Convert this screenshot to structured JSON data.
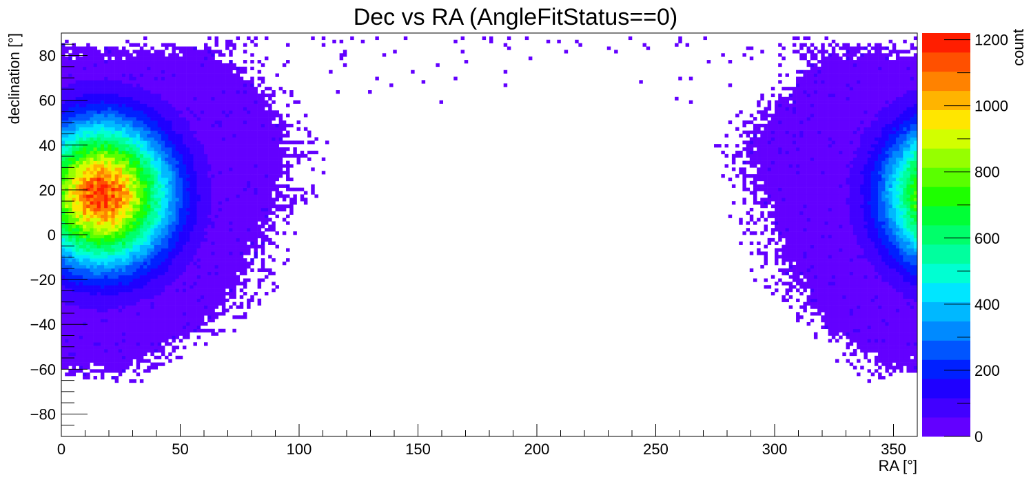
{
  "chart_data": {
    "type": "heatmap",
    "title": "Dec vs RA (AngleFitStatus==0)",
    "xlabel": "RA [°]",
    "ylabel": "declination [°]",
    "zlabel": "count",
    "xlim": [
      0,
      360
    ],
    "ylim": [
      -90,
      90
    ],
    "zlim": [
      0,
      1220
    ],
    "x_ticks": [
      0,
      50,
      100,
      150,
      200,
      250,
      300,
      350
    ],
    "x_tick_labels": [
      "0",
      "50",
      "100",
      "150",
      "200",
      "250",
      "300",
      "350"
    ],
    "y_ticks": [
      -80,
      -60,
      -40,
      -20,
      0,
      20,
      40,
      60,
      80
    ],
    "y_tick_labels": [
      "−80",
      "−60",
      "−40",
      "−20",
      "0",
      "20",
      "40",
      "60",
      "80"
    ],
    "z_ticks": [
      0,
      200,
      400,
      600,
      800,
      1000,
      1200
    ],
    "z_tick_labels": [
      "0",
      "200",
      "400",
      "600",
      "800",
      "1000",
      "1200"
    ],
    "bin_size_deg": [
      1.5,
      1.5
    ],
    "colormap": [
      "#6300ff",
      "#4100ff",
      "#1f00ff",
      "#0020ff",
      "#0055ff",
      "#008aff",
      "#00b8ff",
      "#00e6ff",
      "#00ffd2",
      "#00ff9e",
      "#00ff6a",
      "#00ff36",
      "#1eff00",
      "#5aff00",
      "#96ff00",
      "#d2ff00",
      "#ffe600",
      "#ffb400",
      "#ff8200",
      "#ff5000",
      "#ff1e00"
    ],
    "peak": {
      "ra": 17,
      "dec": 18,
      "count": 1200
    },
    "core_blobs": [
      {
        "ra_center": 17,
        "dec_center": 18,
        "sigma_ra": 19,
        "sigma_dec": 21,
        "peak_count": 1150
      },
      {
        "ra_center": 377,
        "dec_center": 18,
        "sigma_ra": 19,
        "sigma_dec": 21,
        "peak_count": 1150
      }
    ],
    "sky_envelope": {
      "low_ra_dec_min": -64,
      "high_ra_dec_min": -62,
      "empty_bottom_below_dec": -66,
      "top_dec_max": 86,
      "notes_edge_ra_at_dec": [
        {
          "dec": 80,
          "edge_low_ra": 70,
          "edge_high_ra": 315
        },
        {
          "dec": 60,
          "edge_low_ra": 88,
          "edge_high_ra": 300
        },
        {
          "dec": 40,
          "edge_low_ra": 100,
          "edge_high_ra": 285
        },
        {
          "dec": 20,
          "edge_low_ra": 95,
          "edge_high_ra": 290
        },
        {
          "dec": 0,
          "edge_low_ra": 88,
          "edge_high_ra": 298
        },
        {
          "dec": -20,
          "edge_low_ra": 80,
          "edge_high_ra": 305
        },
        {
          "dec": -40,
          "edge_low_ra": 65,
          "edge_high_ra": 318
        },
        {
          "dec": -60,
          "edge_low_ra": 30,
          "edge_high_ra": 345
        }
      ],
      "background_count": 40
    }
  }
}
